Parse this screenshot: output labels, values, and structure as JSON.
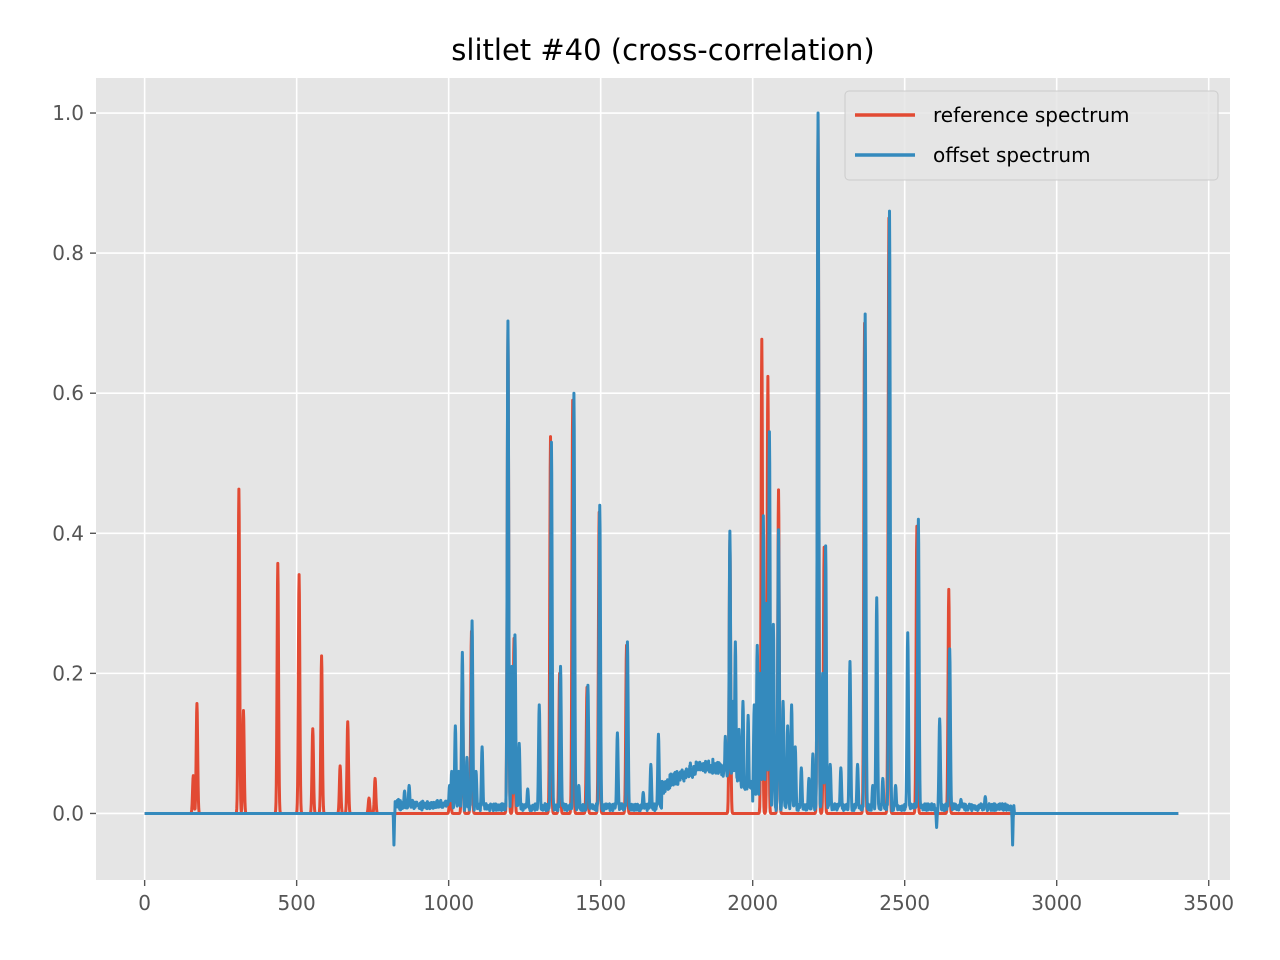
{
  "chart_data": {
    "type": "line",
    "title": "slitlet #40 (cross-correlation)",
    "xlabel": "",
    "ylabel": "",
    "xlim": [
      -160,
      3570
    ],
    "ylim": [
      -0.095,
      1.05
    ],
    "xticks": [
      0,
      500,
      1000,
      1500,
      2000,
      2500,
      3000,
      3500
    ],
    "yticks": [
      0.0,
      0.2,
      0.4,
      0.6,
      0.8,
      1.0
    ],
    "xtick_labels": [
      "0",
      "500",
      "1000",
      "1500",
      "2000",
      "2500",
      "3000",
      "3500"
    ],
    "ytick_labels": [
      "0.0",
      "0.2",
      "0.4",
      "0.6",
      "0.8",
      "1.0"
    ],
    "grid": true,
    "legend_position": "top-right",
    "background_color": "#e5e5e5",
    "grid_color": "#ffffff",
    "series": [
      {
        "name": "reference spectrum",
        "color": "#e24a33",
        "x_range": [
          0,
          3400
        ],
        "baseline": 0.0,
        "peaks": [
          {
            "x": 160,
            "y": 0.054
          },
          {
            "x": 172,
            "y": 0.157
          },
          {
            "x": 310,
            "y": 0.463
          },
          {
            "x": 325,
            "y": 0.147
          },
          {
            "x": 438,
            "y": 0.357
          },
          {
            "x": 508,
            "y": 0.341
          },
          {
            "x": 553,
            "y": 0.121
          },
          {
            "x": 582,
            "y": 0.225
          },
          {
            "x": 643,
            "y": 0.068
          },
          {
            "x": 668,
            "y": 0.131
          },
          {
            "x": 738,
            "y": 0.022
          },
          {
            "x": 758,
            "y": 0.05
          },
          {
            "x": 1005,
            "y": 0.04
          },
          {
            "x": 1045,
            "y": 0.2
          },
          {
            "x": 1075,
            "y": 0.26
          },
          {
            "x": 1195,
            "y": 0.69
          },
          {
            "x": 1215,
            "y": 0.25
          },
          {
            "x": 1335,
            "y": 0.538
          },
          {
            "x": 1365,
            "y": 0.2
          },
          {
            "x": 1408,
            "y": 0.59
          },
          {
            "x": 1455,
            "y": 0.18
          },
          {
            "x": 1495,
            "y": 0.43
          },
          {
            "x": 1585,
            "y": 0.24
          },
          {
            "x": 1925,
            "y": 0.39
          },
          {
            "x": 2030,
            "y": 0.677
          },
          {
            "x": 2050,
            "y": 0.624
          },
          {
            "x": 2085,
            "y": 0.462
          },
          {
            "x": 2215,
            "y": 0.99
          },
          {
            "x": 2235,
            "y": 0.38
          },
          {
            "x": 2368,
            "y": 0.7
          },
          {
            "x": 2448,
            "y": 0.85
          },
          {
            "x": 2540,
            "y": 0.41
          },
          {
            "x": 2645,
            "y": 0.32
          }
        ]
      },
      {
        "name": "offset spectrum",
        "color": "#348abd",
        "x_range": [
          0,
          3400
        ],
        "baseline": 0.0,
        "noise_region": [
          820,
          2860
        ],
        "dips": [
          {
            "x": 820,
            "y": -0.045
          },
          {
            "x": 2605,
            "y": -0.02
          },
          {
            "x": 2855,
            "y": -0.045
          }
        ],
        "peaks": [
          {
            "x": 835,
            "y": 0.02
          },
          {
            "x": 855,
            "y": 0.032
          },
          {
            "x": 870,
            "y": 0.04
          },
          {
            "x": 960,
            "y": 0.012
          },
          {
            "x": 985,
            "y": 0.015
          },
          {
            "x": 1003,
            "y": 0.04
          },
          {
            "x": 1010,
            "y": 0.06
          },
          {
            "x": 1022,
            "y": 0.125
          },
          {
            "x": 1033,
            "y": 0.06
          },
          {
            "x": 1045,
            "y": 0.23
          },
          {
            "x": 1060,
            "y": 0.08
          },
          {
            "x": 1077,
            "y": 0.275
          },
          {
            "x": 1090,
            "y": 0.06
          },
          {
            "x": 1110,
            "y": 0.095
          },
          {
            "x": 1195,
            "y": 0.703
          },
          {
            "x": 1208,
            "y": 0.21
          },
          {
            "x": 1218,
            "y": 0.255
          },
          {
            "x": 1232,
            "y": 0.1
          },
          {
            "x": 1260,
            "y": 0.035
          },
          {
            "x": 1298,
            "y": 0.155
          },
          {
            "x": 1338,
            "y": 0.53
          },
          {
            "x": 1368,
            "y": 0.21
          },
          {
            "x": 1412,
            "y": 0.6
          },
          {
            "x": 1428,
            "y": 0.04
          },
          {
            "x": 1458,
            "y": 0.183
          },
          {
            "x": 1497,
            "y": 0.44
          },
          {
            "x": 1555,
            "y": 0.115
          },
          {
            "x": 1588,
            "y": 0.245
          },
          {
            "x": 1640,
            "y": 0.03
          },
          {
            "x": 1665,
            "y": 0.07
          },
          {
            "x": 1690,
            "y": 0.113
          },
          {
            "x": 1740,
            "y": 0.035
          },
          {
            "x": 1760,
            "y": 0.04
          },
          {
            "x": 1795,
            "y": 0.072
          },
          {
            "x": 1820,
            "y": 0.065
          },
          {
            "x": 1840,
            "y": 0.068
          },
          {
            "x": 1860,
            "y": 0.06
          },
          {
            "x": 1885,
            "y": 0.073
          },
          {
            "x": 1910,
            "y": 0.11
          },
          {
            "x": 1925,
            "y": 0.403
          },
          {
            "x": 1935,
            "y": 0.16
          },
          {
            "x": 1943,
            "y": 0.245
          },
          {
            "x": 1955,
            "y": 0.12
          },
          {
            "x": 1968,
            "y": 0.16
          },
          {
            "x": 1985,
            "y": 0.14
          },
          {
            "x": 2005,
            "y": 0.155
          },
          {
            "x": 2015,
            "y": 0.24
          },
          {
            "x": 2025,
            "y": 0.2
          },
          {
            "x": 2035,
            "y": 0.425
          },
          {
            "x": 2045,
            "y": 0.3
          },
          {
            "x": 2055,
            "y": 0.545
          },
          {
            "x": 2068,
            "y": 0.27
          },
          {
            "x": 2085,
            "y": 0.405
          },
          {
            "x": 2100,
            "y": 0.16
          },
          {
            "x": 2115,
            "y": 0.125
          },
          {
            "x": 2128,
            "y": 0.155
          },
          {
            "x": 2140,
            "y": 0.095
          },
          {
            "x": 2160,
            "y": 0.065
          },
          {
            "x": 2185,
            "y": 0.05
          },
          {
            "x": 2198,
            "y": 0.085
          },
          {
            "x": 2215,
            "y": 1.0
          },
          {
            "x": 2230,
            "y": 0.2
          },
          {
            "x": 2240,
            "y": 0.382
          },
          {
            "x": 2255,
            "y": 0.07
          },
          {
            "x": 2290,
            "y": 0.065
          },
          {
            "x": 2320,
            "y": 0.217
          },
          {
            "x": 2345,
            "y": 0.07
          },
          {
            "x": 2370,
            "y": 0.713
          },
          {
            "x": 2395,
            "y": 0.04
          },
          {
            "x": 2408,
            "y": 0.308
          },
          {
            "x": 2428,
            "y": 0.05
          },
          {
            "x": 2450,
            "y": 0.86
          },
          {
            "x": 2470,
            "y": 0.04
          },
          {
            "x": 2510,
            "y": 0.258
          },
          {
            "x": 2545,
            "y": 0.42
          },
          {
            "x": 2615,
            "y": 0.135
          },
          {
            "x": 2648,
            "y": 0.235
          },
          {
            "x": 2685,
            "y": 0.02
          },
          {
            "x": 2725,
            "y": 0.01
          },
          {
            "x": 2745,
            "y": 0.012
          },
          {
            "x": 2765,
            "y": 0.024
          }
        ]
      }
    ]
  }
}
